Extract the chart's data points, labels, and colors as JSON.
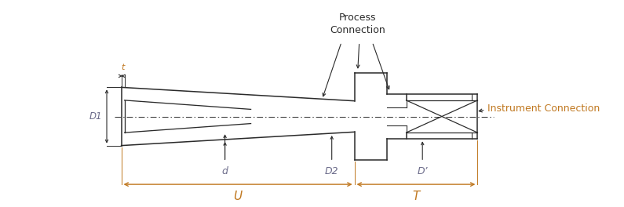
{
  "bg_color": "#ffffff",
  "line_color": "#2a2a2a",
  "dim_color": "#6b6b8a",
  "orange_color": "#c07820",
  "figsize": [
    7.95,
    2.64
  ],
  "dpi": 100,
  "xlim": [
    0,
    13.5
  ],
  "ylim": [
    -2.8,
    3.6
  ],
  "labels": {
    "t": "t",
    "D1": "D1",
    "d": "d",
    "D2": "D2",
    "D": "D’",
    "U": "U",
    "T": "T",
    "process": "Process\nConnection",
    "instrument": "Instrument Connection"
  }
}
